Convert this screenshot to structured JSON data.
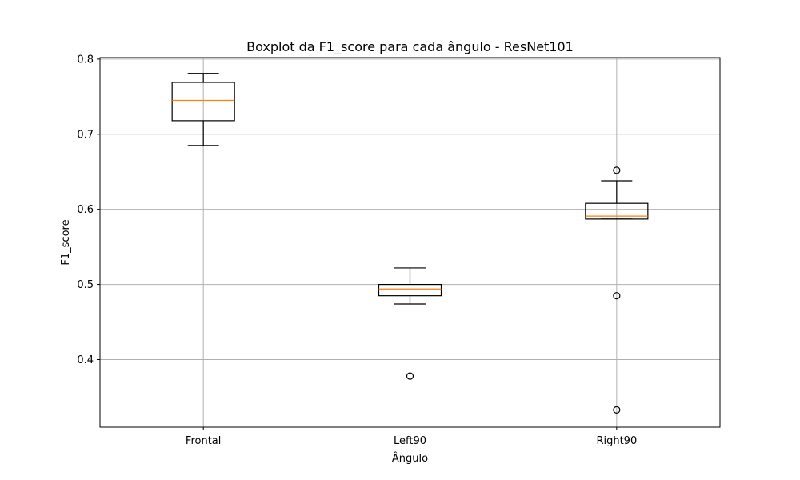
{
  "chart_data": {
    "type": "boxplot",
    "title": "Boxplot da F1_score para cada ângulo - ResNet101",
    "xlabel": "Ângulo",
    "ylabel": "F1_score",
    "ylim": [
      0.31,
      0.802
    ],
    "yticks": [
      "0.4",
      "0.5",
      "0.6",
      "0.7",
      "0.8"
    ],
    "grid": true,
    "categories": [
      "Frontal",
      "Left90",
      "Right90"
    ],
    "boxes": [
      {
        "category": "Frontal",
        "whisker_low": 0.685,
        "q1": 0.718,
        "median": 0.745,
        "q3": 0.769,
        "whisker_high": 0.781,
        "outliers": []
      },
      {
        "category": "Left90",
        "whisker_low": 0.474,
        "q1": 0.485,
        "median": 0.494,
        "q3": 0.5,
        "whisker_high": 0.522,
        "outliers": [
          0.378
        ]
      },
      {
        "category": "Right90",
        "whisker_low": 0.587,
        "q1": 0.587,
        "median": 0.591,
        "q3": 0.608,
        "whisker_high": 0.638,
        "outliers": [
          0.652,
          0.485,
          0.333
        ]
      }
    ],
    "colors": {
      "box": "#000000",
      "median": "#ff7f0e",
      "grid": "#b0b0b0"
    }
  }
}
